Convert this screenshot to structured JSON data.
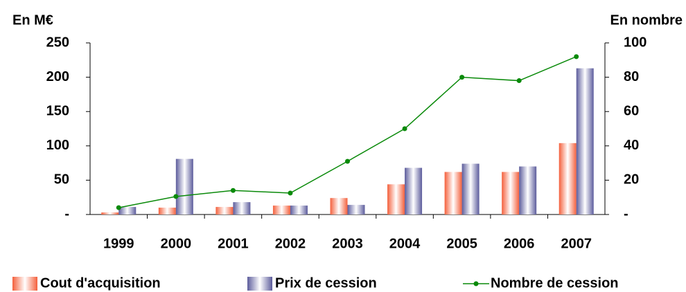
{
  "chart_data": {
    "type": "bar",
    "y_label": "En M€",
    "y2_label": "En nombre",
    "categories": [
      "1999",
      "2000",
      "2001",
      "2002",
      "2003",
      "2004",
      "2005",
      "2006",
      "2007"
    ],
    "series": [
      {
        "name": "Cout d'acquisition",
        "color": "#f4603c",
        "values": [
          3,
          10,
          11,
          13,
          24,
          44,
          62,
          62,
          104
        ]
      },
      {
        "name": "Prix de cession",
        "color": "#5c5c9c",
        "values": [
          11,
          81,
          18,
          13,
          14,
          68,
          74,
          70,
          213
        ]
      },
      {
        "name": "Nombre de cession",
        "color": "#0a8a0a",
        "type": "line",
        "axis": "y2",
        "values": [
          4,
          10.5,
          14,
          12.5,
          31,
          50,
          80,
          78,
          92
        ]
      }
    ],
    "ylim": [
      0,
      250
    ],
    "yticks": [
      {
        "value": 0,
        "label": "-"
      },
      50,
      100,
      150,
      200,
      250
    ],
    "y2lim": [
      0,
      100
    ],
    "y2ticks": [
      {
        "value": 0,
        "label": "-"
      },
      20,
      40,
      60,
      80,
      100
    ]
  }
}
